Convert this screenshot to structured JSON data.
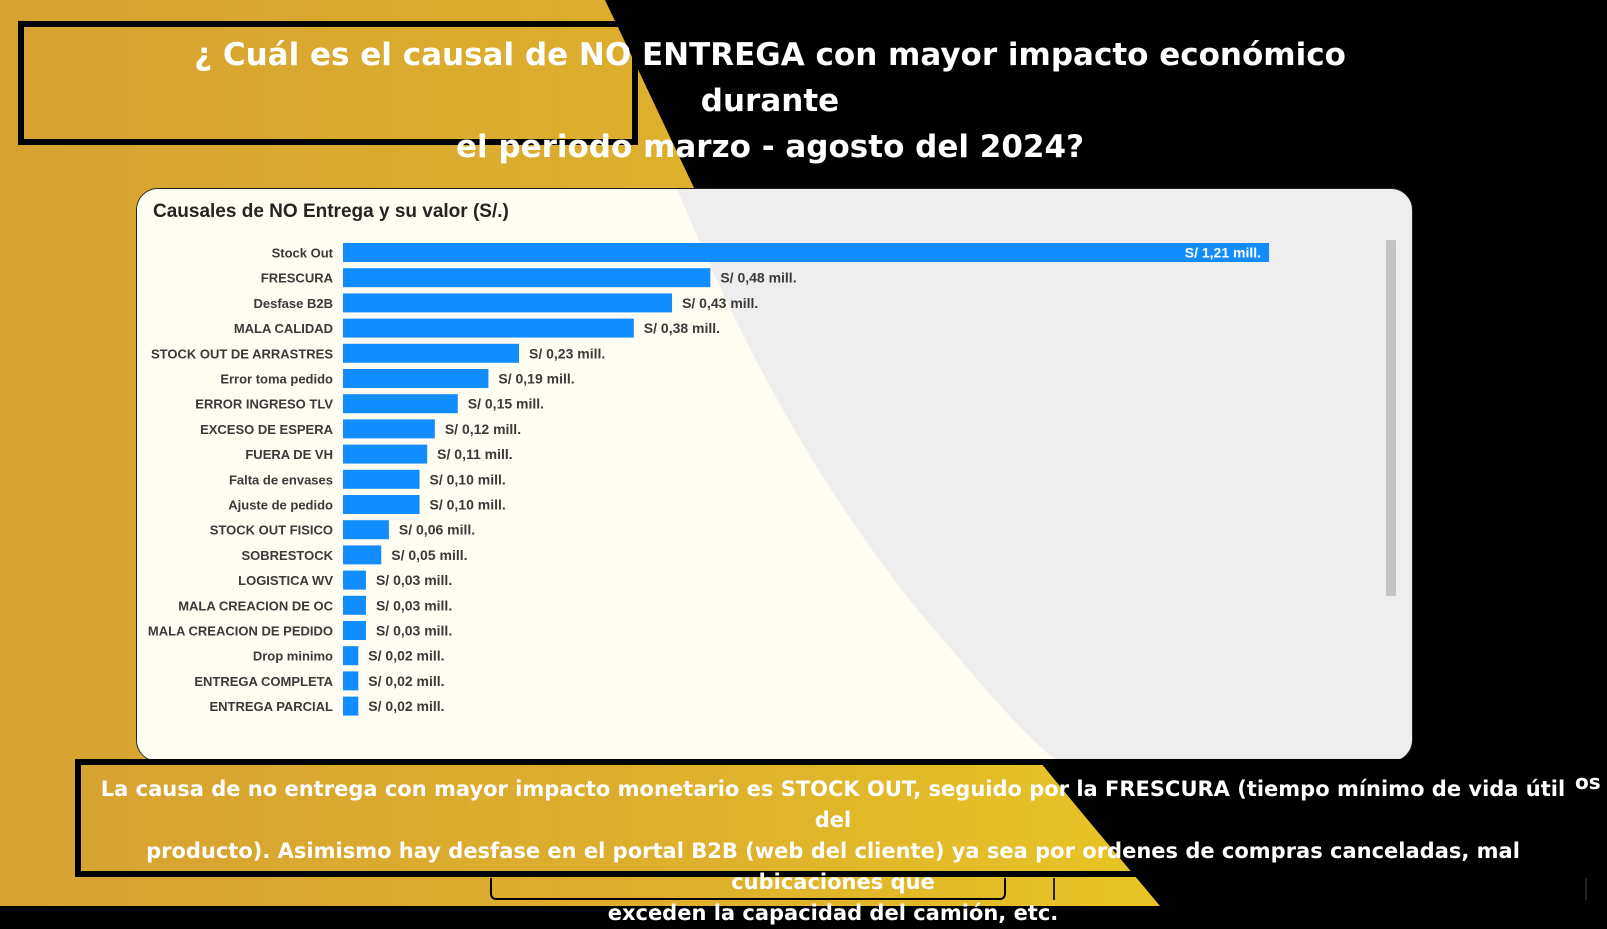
{
  "title": {
    "line1": "¿ Cuál es el causal de NO ENTREGA con mayor impacto económico durante",
    "line2": "el periodo marzo - agosto del 2024?"
  },
  "conclusion": {
    "line1": "La causa de no entrega con mayor impacto monetario es STOCK OUT, seguido por la FRESCURA (tiempo mínimo de vida útil del",
    "line2": "producto). Asimismo hay desfase en el portal B2B (web del cliente) ya sea por ordenes de compras canceladas, mal cubicaciones que",
    "line3": "exceden la capacidad del camión, etc."
  },
  "stray": {
    "edge_text": "os",
    "row_text": "..............................",
    "pct_text": "......%"
  },
  "colors": {
    "bar": "#118DFF",
    "yellow": "#E3B32A",
    "gold": "#D3A336",
    "background": "#000000"
  },
  "chart_data": {
    "type": "bar",
    "orientation": "horizontal",
    "title": "Causales de NO Entrega y su valor (S/.)",
    "categories": [
      "Stock Out",
      "FRESCURA",
      "Desfase B2B",
      "MALA CALIDAD",
      "STOCK OUT DE ARRASTRES",
      "Error toma pedido",
      "ERROR INGRESO TLV",
      "EXCESO DE ESPERA",
      "FUERA DE VH",
      "Falta de envases",
      "Ajuste de pedido",
      "STOCK OUT FISICO",
      "SOBRESTOCK",
      "LOGISTICA WV",
      "MALA CREACION DE OC",
      "MALA CREACION DE PEDIDO",
      "Drop minimo",
      "ENTREGA COMPLETA",
      "ENTREGA PARCIAL"
    ],
    "values": [
      1.21,
      0.48,
      0.43,
      0.38,
      0.23,
      0.19,
      0.15,
      0.12,
      0.11,
      0.1,
      0.1,
      0.06,
      0.05,
      0.03,
      0.03,
      0.03,
      0.02,
      0.02,
      0.02
    ],
    "data_labels": [
      "S/ 1,21 mill.",
      "S/ 0,48 mill.",
      "S/ 0,43 mill.",
      "S/ 0,38 mill.",
      "S/ 0,23 mill.",
      "S/ 0,19 mill.",
      "S/ 0,15 mill.",
      "S/ 0,12 mill.",
      "S/ 0,11 mill.",
      "S/ 0,10 mill.",
      "S/ 0,10 mill.",
      "S/ 0,06 mill.",
      "S/ 0,05 mill.",
      "S/ 0,03 mill.",
      "S/ 0,03 mill.",
      "S/ 0,03 mill.",
      "S/ 0,02 mill.",
      "S/ 0,02 mill.",
      "S/ 0,02 mill."
    ],
    "unit": "S/ mill.",
    "xlim": [
      0,
      1.21
    ],
    "grid": false,
    "legend": "none"
  }
}
